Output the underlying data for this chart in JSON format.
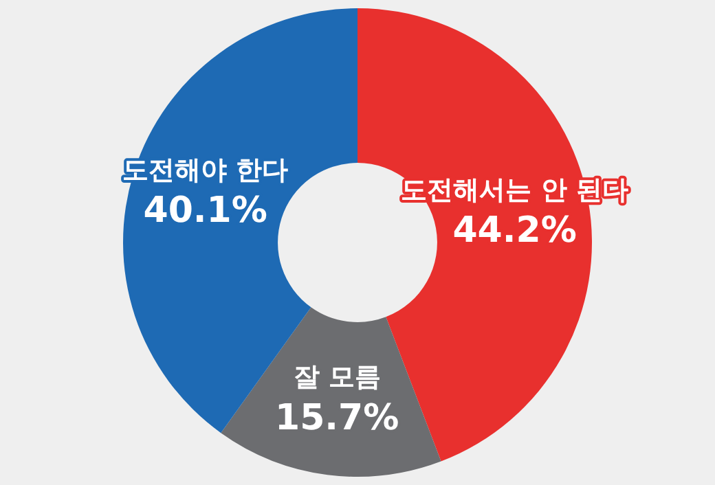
{
  "chart_data": {
    "type": "donut",
    "categories": [
      "도전해서는 안 된다",
      "잘 모름",
      "도전해야 한다"
    ],
    "values": [
      44.2,
      15.7,
      40.1
    ],
    "colors": [
      "#e8302e",
      "#6c6d70",
      "#1e6ab4"
    ],
    "value_labels": [
      "44.2%",
      "15.7%",
      "40.1%"
    ],
    "legend": false
  }
}
